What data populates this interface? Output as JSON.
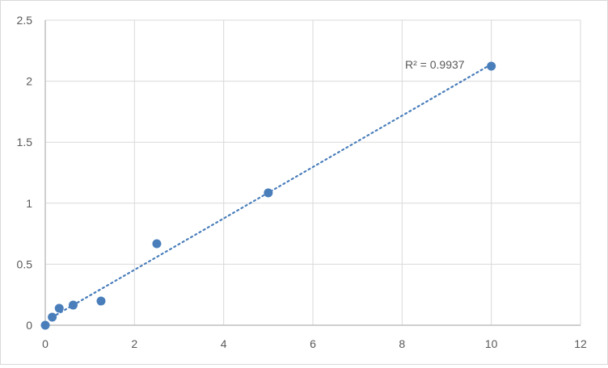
{
  "chart_data": {
    "type": "scatter",
    "title": "",
    "xlabel": "",
    "ylabel": "",
    "xlim": [
      0,
      12
    ],
    "ylim": [
      0,
      2.5
    ],
    "xticks": [
      0,
      2,
      4,
      6,
      8,
      10,
      12
    ],
    "yticks": [
      0,
      0.5,
      1,
      1.5,
      2,
      2.5
    ],
    "ytick_labels": [
      "0",
      "0.5",
      "1",
      "1.5",
      "2",
      "2.5"
    ],
    "grid": true,
    "legend": "none",
    "marker_color": "#4a7ebb",
    "trendline": {
      "type": "linear",
      "style": "dotted",
      "color": "#4a7ebb",
      "label": "R² = 0.9937"
    },
    "points": [
      {
        "x": 0,
        "y": 0
      },
      {
        "x": 0.156,
        "y": 0.066
      },
      {
        "x": 0.3125,
        "y": 0.139
      },
      {
        "x": 0.625,
        "y": 0.165
      },
      {
        "x": 1.25,
        "y": 0.198
      },
      {
        "x": 2.5,
        "y": 0.668
      },
      {
        "x": 5,
        "y": 1.085
      },
      {
        "x": 10,
        "y": 2.123
      }
    ]
  }
}
